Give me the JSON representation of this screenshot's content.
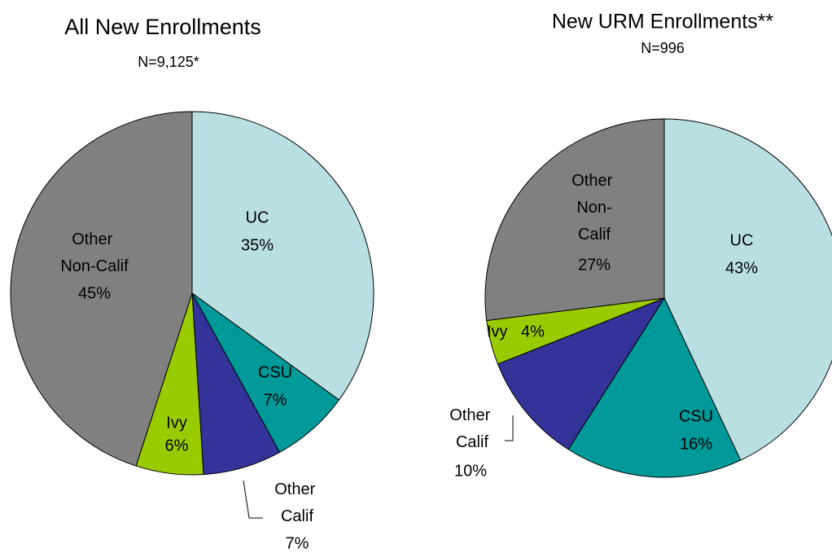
{
  "chart_data": [
    {
      "type": "pie",
      "title": "All New Enrollments",
      "subtitle": "N=9,125*",
      "categories": [
        "UC",
        "CSU",
        "Other Calif",
        "Ivy",
        "Other Non-Calif"
      ],
      "values": [
        35,
        7,
        7,
        6,
        45
      ],
      "value_labels": [
        "35%",
        "7%",
        "7%",
        "6%",
        "45%"
      ],
      "colors": [
        "#b9dfe3",
        "#009999",
        "#333399",
        "#99cc00",
        "#808080"
      ]
    },
    {
      "type": "pie",
      "title": "New URM Enrollments**",
      "subtitle": "N=996",
      "categories": [
        "UC",
        "CSU",
        "Other Calif",
        "Ivy",
        "Other Non-Calif"
      ],
      "values": [
        43,
        16,
        10,
        4,
        27
      ],
      "value_labels": [
        "43%",
        "16%",
        "10%",
        "4%",
        "27%"
      ],
      "colors": [
        "#b9dfe3",
        "#009999",
        "#333399",
        "#99cc00",
        "#808080"
      ]
    }
  ]
}
